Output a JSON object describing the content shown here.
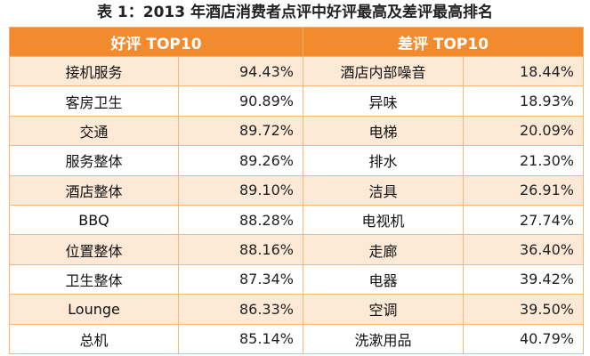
{
  "caption": "表 1：2013 年酒店消费者点评中好评最高及差评最高排名",
  "header": {
    "good": "好评 TOP10",
    "bad": "差评 TOP10"
  },
  "rows": [
    {
      "good_name": "接机服务",
      "good_value": "94.43%",
      "bad_name": "酒店内部噪音",
      "bad_value": "18.44%"
    },
    {
      "good_name": "客房卫生",
      "good_value": "90.89%",
      "bad_name": "异味",
      "bad_value": "18.93%"
    },
    {
      "good_name": "交通",
      "good_value": "89.72%",
      "bad_name": "电梯",
      "bad_value": "20.09%"
    },
    {
      "good_name": "服务整体",
      "good_value": "89.26%",
      "bad_name": "排水",
      "bad_value": "21.30%"
    },
    {
      "good_name": "酒店整体",
      "good_value": "89.10%",
      "bad_name": "洁具",
      "bad_value": "26.91%"
    },
    {
      "good_name": "BBQ",
      "good_value": "88.28%",
      "bad_name": "电视机",
      "bad_value": "27.74%"
    },
    {
      "good_name": "位置整体",
      "good_value": "88.16%",
      "bad_name": "走廊",
      "bad_value": "36.40%"
    },
    {
      "good_name": "卫生整体",
      "good_value": "87.34%",
      "bad_name": "电器",
      "bad_value": "39.42%"
    },
    {
      "good_name": "Lounge",
      "good_value": "86.33%",
      "bad_name": "空调",
      "bad_value": "39.50%"
    },
    {
      "good_name": "总机",
      "good_value": "85.14%",
      "bad_name": "洗漱用品",
      "bad_value": "40.79%"
    }
  ],
  "colors": {
    "header_bg": "#f28b2e",
    "stripe_bg": "#fde9d6",
    "border": "#f6b679"
  }
}
